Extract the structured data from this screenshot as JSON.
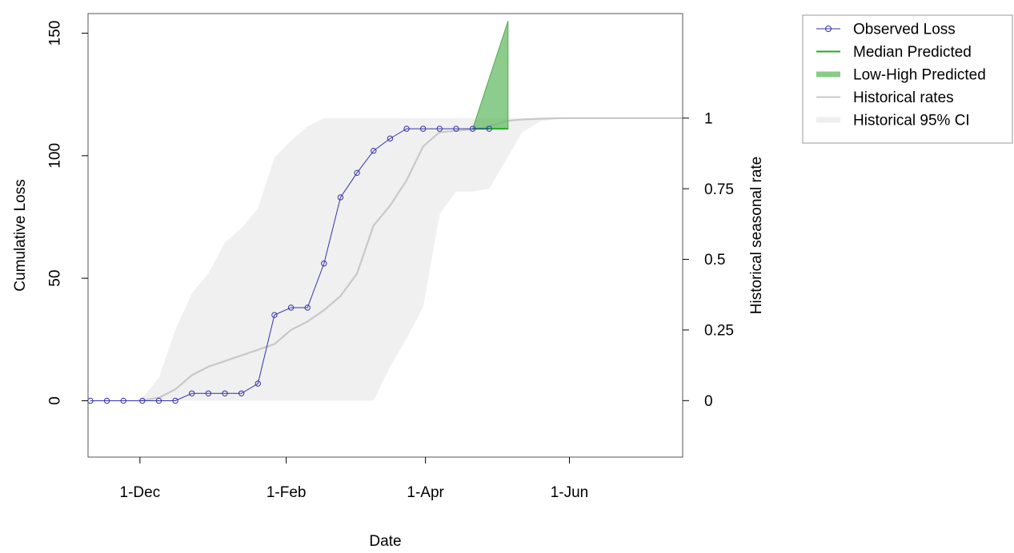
{
  "chart_data": {
    "type": "line",
    "xlabel": "Date",
    "ylabel": "Cumulative Loss",
    "y2label": "Historical seasonal rate",
    "x_unit": "days",
    "x_ticks": [
      {
        "label": "1-Dec",
        "x": 0
      },
      {
        "label": "1-Feb",
        "x": 62
      },
      {
        "label": "1-Apr",
        "x": 121
      },
      {
        "label": "1-Jun",
        "x": 182
      }
    ],
    "xlim": [
      -22,
      230
    ],
    "ylim": [
      -23,
      158
    ],
    "y_ticks": [
      0,
      50,
      100,
      150
    ],
    "y2lim": [
      -0.2,
      1.37
    ],
    "y2_ticks": [
      {
        "label": "0",
        "value": 0
      },
      {
        "label": "0.25",
        "value": 0.25
      },
      {
        "label": "0.5",
        "value": 0.5
      },
      {
        "label": "0.75",
        "value": 0.75
      },
      {
        "label": "1",
        "value": 1
      }
    ],
    "series": [
      {
        "name": "Observed Loss",
        "color": "#3333aa",
        "axis": "left",
        "x": [
          -21,
          -14,
          -7,
          1,
          8,
          15,
          22,
          29,
          36,
          43,
          50,
          57,
          64,
          71,
          78,
          85,
          92,
          99,
          106,
          113,
          120,
          127,
          134,
          141,
          148
        ],
        "values": [
          0,
          0,
          0,
          0,
          0,
          0,
          3,
          3,
          3,
          3,
          7,
          35,
          38,
          38,
          56,
          83,
          93,
          102,
          107,
          111,
          111,
          111,
          111,
          111,
          111
        ]
      },
      {
        "name": "Median Predicted",
        "color": "#22aa22",
        "axis": "left",
        "x": [
          141,
          149,
          156
        ],
        "values": [
          111,
          111,
          111
        ]
      },
      {
        "name": "Low-High Predicted",
        "color": "#66bb66",
        "axis": "left",
        "x": [
          141,
          156
        ],
        "low": [
          111,
          111
        ],
        "high": [
          111,
          155
        ]
      },
      {
        "name": "Historical rates",
        "color": "#c8c8c8",
        "axis": "right",
        "x": [
          0,
          8,
          15,
          22,
          29,
          36,
          43,
          50,
          57,
          64,
          71,
          78,
          85,
          92,
          99,
          106,
          113,
          120,
          127,
          134,
          141,
          148,
          155,
          162,
          170,
          180,
          190,
          200,
          215,
          230
        ],
        "values": [
          0,
          0.01,
          0.04,
          0.09,
          0.12,
          0.14,
          0.16,
          0.18,
          0.2,
          0.25,
          0.28,
          0.32,
          0.37,
          0.45,
          0.62,
          0.69,
          0.78,
          0.9,
          0.95,
          0.955,
          0.96,
          0.97,
          0.99,
          0.995,
          0.998,
          1,
          1,
          1,
          1,
          1
        ]
      },
      {
        "name": "Historical 95% CI",
        "color": "#f0f0f0",
        "axis": "right",
        "x": [
          0,
          8,
          15,
          22,
          29,
          36,
          43,
          50,
          57,
          64,
          71,
          78,
          85,
          92,
          99,
          106,
          113,
          120,
          127,
          134,
          141,
          148,
          155,
          162,
          170,
          180,
          190,
          200,
          215,
          230
        ],
        "low": [
          0,
          0,
          0,
          0,
          0,
          0,
          0,
          0,
          0,
          0,
          0,
          0,
          0,
          0,
          0,
          0.12,
          0.22,
          0.33,
          0.66,
          0.74,
          0.74,
          0.75,
          0.85,
          0.95,
          0.99,
          1,
          1,
          1,
          1,
          1
        ],
        "high": [
          0,
          0.08,
          0.25,
          0.38,
          0.45,
          0.56,
          0.61,
          0.68,
          0.86,
          0.92,
          0.97,
          1,
          1,
          1,
          1,
          1,
          1,
          1,
          1,
          1,
          1,
          1,
          1,
          1,
          1,
          1,
          1,
          1,
          1,
          1
        ]
      }
    ],
    "legend": {
      "position": "top-right-outside",
      "entries": [
        {
          "label": "Observed Loss",
          "style": "line-point",
          "color": "#3333aa"
        },
        {
          "label": "Median Predicted",
          "style": "line",
          "color": "#22aa22"
        },
        {
          "label": "Low-High Predicted",
          "style": "thick-line",
          "color": "#88cc88"
        },
        {
          "label": "Historical rates",
          "style": "line",
          "color": "#c8c8c8"
        },
        {
          "label": "Historical 95% CI",
          "style": "thick-line",
          "color": "#eeeeee"
        }
      ]
    },
    "grid": false
  }
}
